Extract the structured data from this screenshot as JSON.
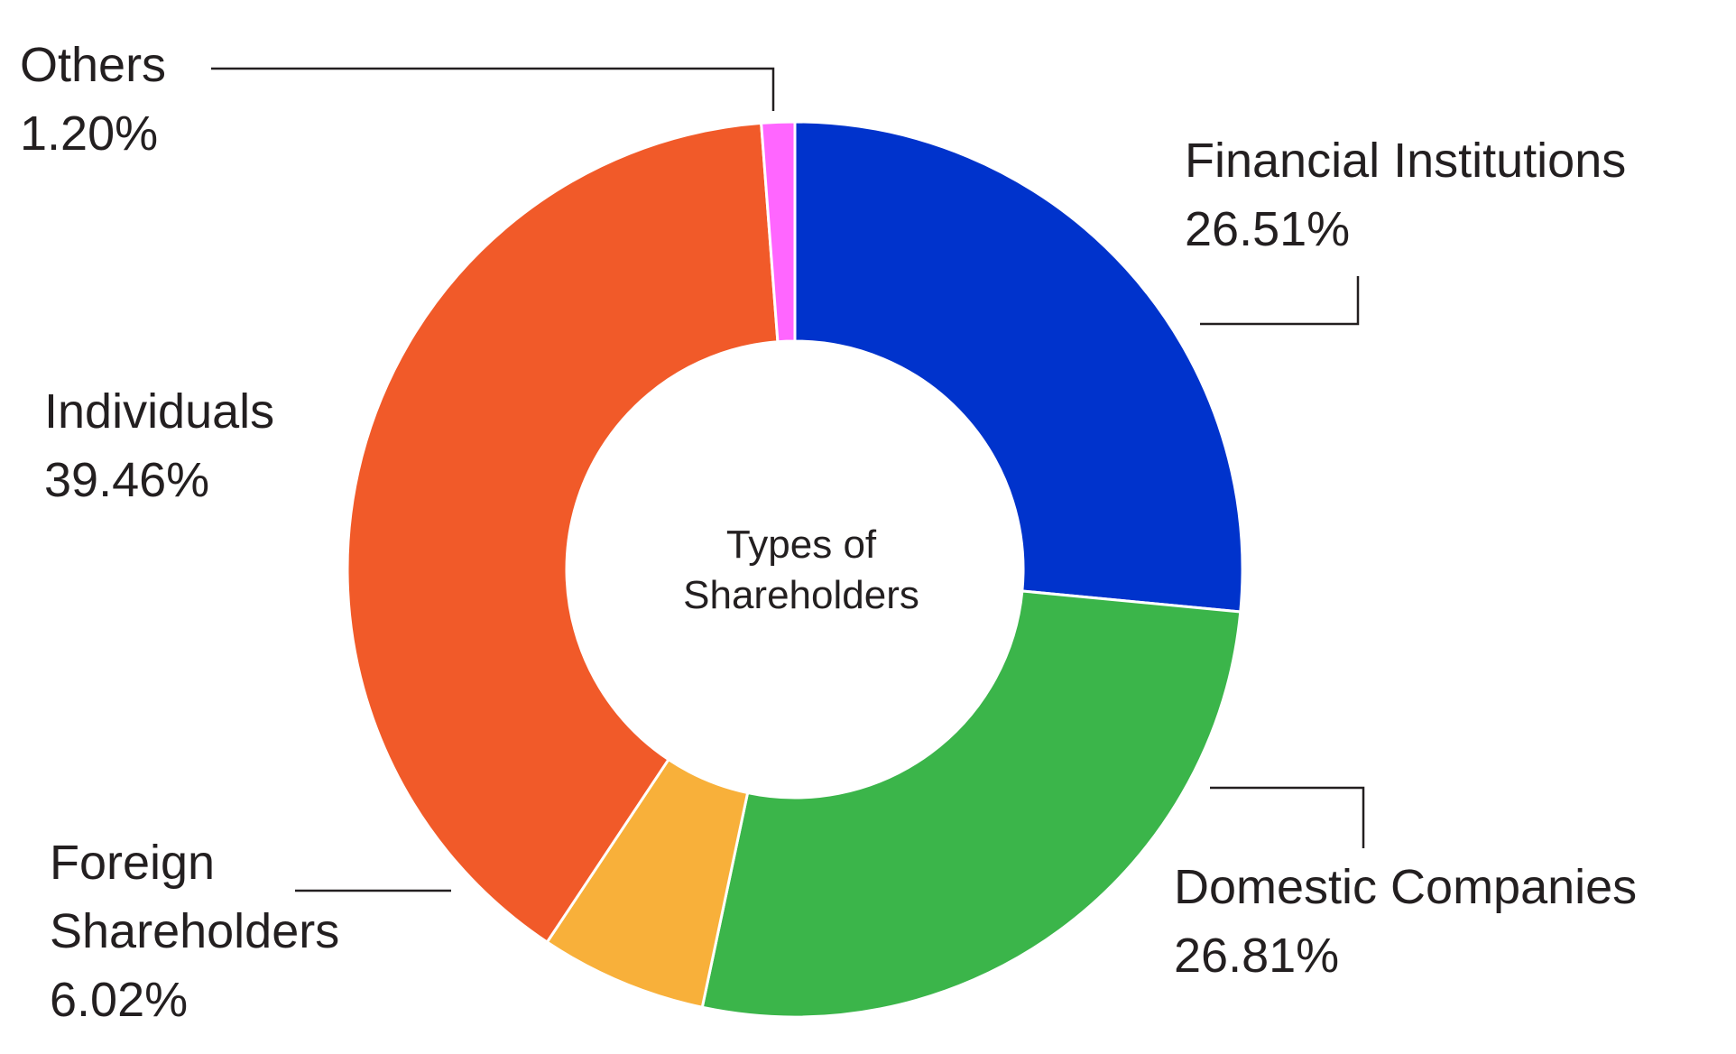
{
  "chart_data": {
    "type": "pie",
    "donut": true,
    "center_label": [
      "Types of",
      "Shareholders"
    ],
    "categories": [
      "Financial Institutions",
      "Domestic Companies",
      "Foreign Shareholders",
      "Individuals",
      "Others"
    ],
    "values": [
      26.51,
      26.81,
      6.02,
      39.46,
      1.2
    ],
    "value_labels": [
      "26.51%",
      "26.81%",
      "6.02%",
      "39.46%",
      "1.20%"
    ],
    "colors": [
      "#0033cc",
      "#3bb54a",
      "#f8b03a",
      "#f15a29",
      "#ff66ff"
    ]
  }
}
